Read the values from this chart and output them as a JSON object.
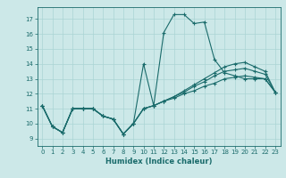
{
  "xlabel": "Humidex (Indice chaleur)",
  "bg_color": "#cce8e8",
  "grid_color": "#aad4d4",
  "line_color": "#1a6b6b",
  "xlim": [
    -0.5,
    23.5
  ],
  "ylim": [
    8.5,
    17.8
  ],
  "xticks": [
    0,
    1,
    2,
    3,
    4,
    5,
    6,
    7,
    8,
    9,
    10,
    11,
    12,
    13,
    14,
    15,
    16,
    17,
    18,
    19,
    20,
    21,
    22,
    23
  ],
  "yticks": [
    9,
    10,
    11,
    12,
    13,
    14,
    15,
    16,
    17
  ],
  "lines": [
    {
      "x": [
        0,
        1,
        2,
        3,
        4,
        5,
        6,
        7,
        8,
        9,
        10,
        11,
        12,
        13,
        14,
        15,
        16,
        17,
        18,
        19,
        20,
        21,
        22,
        23
      ],
      "y": [
        11.2,
        9.8,
        9.4,
        11.0,
        11.0,
        11.0,
        10.5,
        10.3,
        9.3,
        10.0,
        14.0,
        11.2,
        16.1,
        17.3,
        17.3,
        16.7,
        16.8,
        14.3,
        13.4,
        13.2,
        13.0,
        13.0,
        13.0,
        12.1
      ]
    },
    {
      "x": [
        0,
        1,
        2,
        3,
        4,
        5,
        6,
        7,
        8,
        9,
        10,
        11,
        12,
        13,
        14,
        15,
        16,
        17,
        18,
        19,
        20,
        21,
        22,
        23
      ],
      "y": [
        11.2,
        9.8,
        9.4,
        11.0,
        11.0,
        11.0,
        10.5,
        10.3,
        9.3,
        10.0,
        11.0,
        11.2,
        11.5,
        11.7,
        12.0,
        12.2,
        12.5,
        12.7,
        13.0,
        13.1,
        13.2,
        13.1,
        13.0,
        12.1
      ]
    },
    {
      "x": [
        0,
        1,
        2,
        3,
        4,
        5,
        6,
        7,
        8,
        9,
        10,
        11,
        12,
        13,
        14,
        15,
        16,
        17,
        18,
        19,
        20,
        21,
        22,
        23
      ],
      "y": [
        11.2,
        9.8,
        9.4,
        11.0,
        11.0,
        11.0,
        10.5,
        10.3,
        9.3,
        10.0,
        11.0,
        11.2,
        11.5,
        11.8,
        12.1,
        12.5,
        12.8,
        13.2,
        13.5,
        13.6,
        13.7,
        13.5,
        13.3,
        12.1
      ]
    },
    {
      "x": [
        0,
        1,
        2,
        3,
        4,
        5,
        6,
        7,
        8,
        9,
        10,
        11,
        12,
        13,
        14,
        15,
        16,
        17,
        18,
        19,
        20,
        21,
        22,
        23
      ],
      "y": [
        11.2,
        9.8,
        9.4,
        11.0,
        11.0,
        11.0,
        10.5,
        10.3,
        9.3,
        10.0,
        11.0,
        11.2,
        11.5,
        11.8,
        12.2,
        12.6,
        13.0,
        13.4,
        13.8,
        14.0,
        14.1,
        13.8,
        13.5,
        12.1
      ]
    }
  ]
}
